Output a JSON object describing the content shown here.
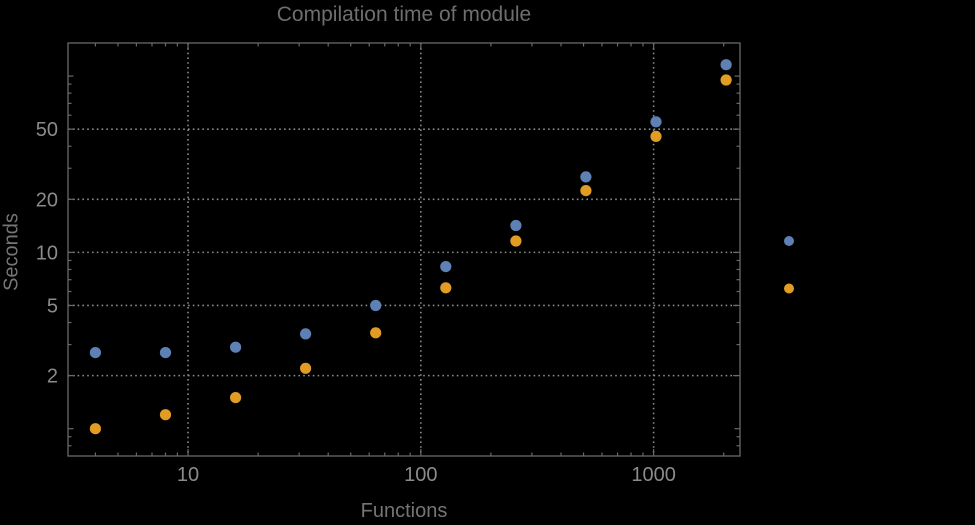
{
  "colors": {
    "background": "#000000",
    "frame": "#696969",
    "grid": "#8b8b8b",
    "tick_text": "#8b8b8b",
    "title_text": "#6e6e6e",
    "series_blue": "#5e81b5",
    "series_orange": "#e19c24"
  },
  "chart_data": {
    "type": "scatter",
    "title": "Compilation time of module",
    "xlabel": "Functions",
    "ylabel": "Seconds",
    "x_scale": "log",
    "y_scale": "log",
    "xlim": [
      3.05,
      2350
    ],
    "ylim": [
      0.7,
      154
    ],
    "x_ticks_labeled": [
      10,
      100,
      1000
    ],
    "y_ticks_labeled": [
      2,
      5,
      10,
      20,
      50
    ],
    "y_ticks_unlabeled_major": [
      1,
      100
    ],
    "grid": "dotted lines at labeled ticks, frame on all four sides with inward minor ticks",
    "legend_position": "right-outside, markers only, no visible labels",
    "x": [
      4,
      8,
      16,
      32,
      64,
      128,
      256,
      512,
      1024,
      2048
    ],
    "series": [
      {
        "name": "blue",
        "color": "#5e81b5",
        "values": [
          2.7,
          2.7,
          2.9,
          3.45,
          5.0,
          8.3,
          14.2,
          26.8,
          55,
          116
        ]
      },
      {
        "name": "orange",
        "color": "#e19c24",
        "values": [
          1.0,
          1.2,
          1.5,
          2.2,
          3.5,
          6.3,
          11.6,
          22.4,
          45.5,
          95
        ]
      }
    ]
  }
}
